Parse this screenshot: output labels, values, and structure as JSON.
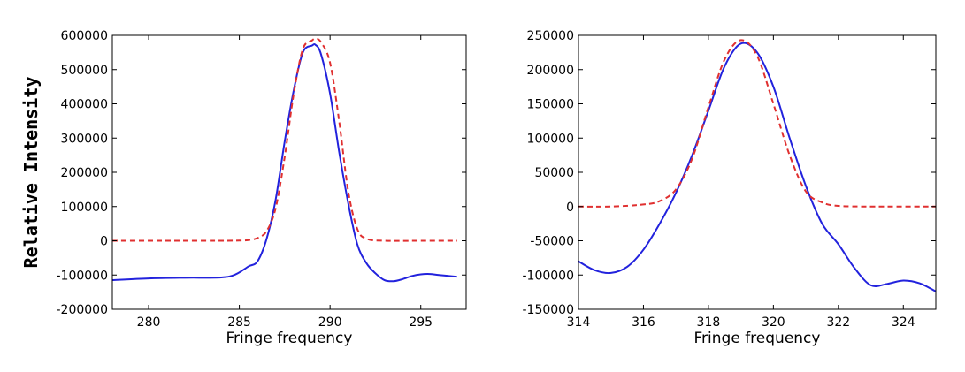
{
  "figure": {
    "shared_ylabel": "Relative Intensity"
  },
  "chart_data": [
    {
      "type": "line",
      "xlabel": "Fringe frequency",
      "ylabel": "Relative Intensity",
      "xlim": [
        278,
        297.5
      ],
      "ylim": [
        -200000,
        600000
      ],
      "xticks": [
        280,
        285,
        290,
        295
      ],
      "yticks": [
        -200000,
        -100000,
        0,
        100000,
        200000,
        300000,
        400000,
        500000,
        600000
      ],
      "xtick_labels": [
        "280",
        "285",
        "290",
        "295"
      ],
      "ytick_labels": [
        "-200000",
        "-100000",
        "0",
        "100000",
        "200000",
        "300000",
        "400000",
        "500000",
        "600000"
      ],
      "grid": false,
      "series": [
        {
          "style": "solid",
          "color": "#2222dd",
          "x": [
            278,
            280,
            282,
            284,
            284.8,
            285.5,
            286,
            286.5,
            287,
            287.5,
            288,
            288.5,
            289,
            289.2,
            289.5,
            290,
            290.5,
            291,
            291.5,
            292,
            292.5,
            293,
            293.5,
            294,
            294.5,
            295,
            295.5,
            296,
            297
          ],
          "y": [
            -115000,
            -110000,
            -108000,
            -107000,
            -98000,
            -75000,
            -60000,
            5000,
            120000,
            290000,
            440000,
            550000,
            570000,
            572000,
            545000,
            430000,
            260000,
            110000,
            -10000,
            -65000,
            -95000,
            -115000,
            -118000,
            -112000,
            -103000,
            -98000,
            -97000,
            -100000,
            -105000
          ]
        },
        {
          "style": "dashed",
          "color": "#e03030",
          "x": [
            278,
            280,
            282,
            284,
            285,
            285.5,
            286,
            286.5,
            287,
            287.5,
            288,
            288.5,
            289,
            289.2,
            289.5,
            290,
            290.5,
            291,
            291.5,
            292,
            293,
            295,
            297
          ],
          "y": [
            0,
            0,
            0,
            0,
            500,
            2000,
            8000,
            28000,
            95000,
            245000,
            430000,
            560000,
            585000,
            590000,
            580000,
            520000,
            350000,
            145000,
            35000,
            6000,
            0,
            0,
            0
          ]
        }
      ]
    },
    {
      "type": "line",
      "xlabel": "Fringe frequency",
      "ylabel": "Relative Intensity",
      "xlim": [
        314,
        325
      ],
      "ylim": [
        -150000,
        250000
      ],
      "xticks": [
        314,
        316,
        318,
        320,
        322,
        324
      ],
      "yticks": [
        -150000,
        -100000,
        -50000,
        0,
        50000,
        100000,
        150000,
        200000,
        250000
      ],
      "xtick_labels": [
        "314",
        "316",
        "318",
        "320",
        "322",
        "324"
      ],
      "ytick_labels": [
        "-150000",
        "-100000",
        "-50000",
        "0",
        "50000",
        "100000",
        "150000",
        "200000",
        "250000"
      ],
      "grid": false,
      "series": [
        {
          "style": "solid",
          "color": "#2222dd",
          "x": [
            314,
            314.5,
            315,
            315.5,
            316,
            316.5,
            317,
            317.5,
            318,
            318.5,
            319,
            319.5,
            320,
            320.5,
            321,
            321.5,
            322,
            322.5,
            323,
            323.5,
            324,
            324.5,
            325
          ],
          "y": [
            -80000,
            -93000,
            -97000,
            -88000,
            -63000,
            -25000,
            20000,
            75000,
            140000,
            205000,
            238000,
            225000,
            175000,
            100000,
            30000,
            -25000,
            -55000,
            -90000,
            -115000,
            -113000,
            -108000,
            -112000,
            -124000
          ]
        },
        {
          "style": "dashed",
          "color": "#e03030",
          "x": [
            314,
            315,
            316,
            316.5,
            317,
            317.5,
            318,
            318.5,
            319,
            319.5,
            320,
            320.5,
            321,
            321.5,
            322,
            323,
            325
          ],
          "y": [
            0,
            0,
            3000,
            8000,
            25000,
            70000,
            145000,
            215000,
            243000,
            220000,
            150000,
            75000,
            22000,
            6000,
            1000,
            0,
            0
          ]
        }
      ]
    }
  ]
}
